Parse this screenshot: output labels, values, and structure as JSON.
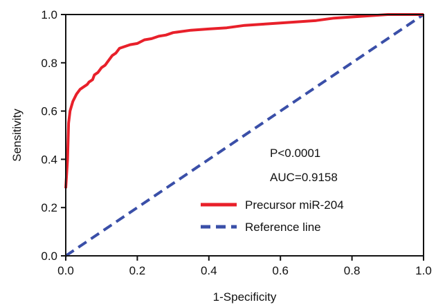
{
  "chart_data": {
    "type": "line",
    "xlabel": "1-Specificity",
    "ylabel": "Sensitivity",
    "xlim": [
      0,
      1
    ],
    "ylim": [
      0,
      1
    ],
    "xticks": [
      "0.0",
      "0.2",
      "0.4",
      "0.6",
      "0.8",
      "1.0"
    ],
    "yticks": [
      "0.0",
      "0.2",
      "0.4",
      "0.6",
      "0.8",
      "1.0"
    ],
    "annotations": [
      "P<0.0001",
      "AUC=0.9158"
    ],
    "legend_position": "lower-right",
    "series": [
      {
        "name": "Precursor miR-204",
        "color": "#e8202a",
        "style": "solid",
        "x": [
          0,
          0.005,
          0.008,
          0.012,
          0.02,
          0.03,
          0.04,
          0.05,
          0.06,
          0.065,
          0.075,
          0.08,
          0.09,
          0.1,
          0.11,
          0.12,
          0.13,
          0.14,
          0.15,
          0.17,
          0.18,
          0.2,
          0.22,
          0.24,
          0.26,
          0.28,
          0.3,
          0.35,
          0.4,
          0.45,
          0.5,
          0.55,
          0.6,
          0.65,
          0.7,
          0.75,
          0.8,
          0.85,
          0.9,
          1.0
        ],
        "y": [
          0.28,
          0.4,
          0.55,
          0.6,
          0.64,
          0.67,
          0.69,
          0.7,
          0.71,
          0.72,
          0.73,
          0.75,
          0.76,
          0.78,
          0.79,
          0.81,
          0.83,
          0.84,
          0.86,
          0.87,
          0.875,
          0.88,
          0.895,
          0.9,
          0.91,
          0.915,
          0.925,
          0.935,
          0.94,
          0.945,
          0.955,
          0.96,
          0.965,
          0.97,
          0.975,
          0.985,
          0.99,
          0.995,
          1.0,
          1.0
        ]
      },
      {
        "name": "Reference line",
        "color": "#3a4fa8",
        "style": "dashed",
        "x": [
          0,
          1
        ],
        "y": [
          0,
          1
        ]
      }
    ]
  }
}
